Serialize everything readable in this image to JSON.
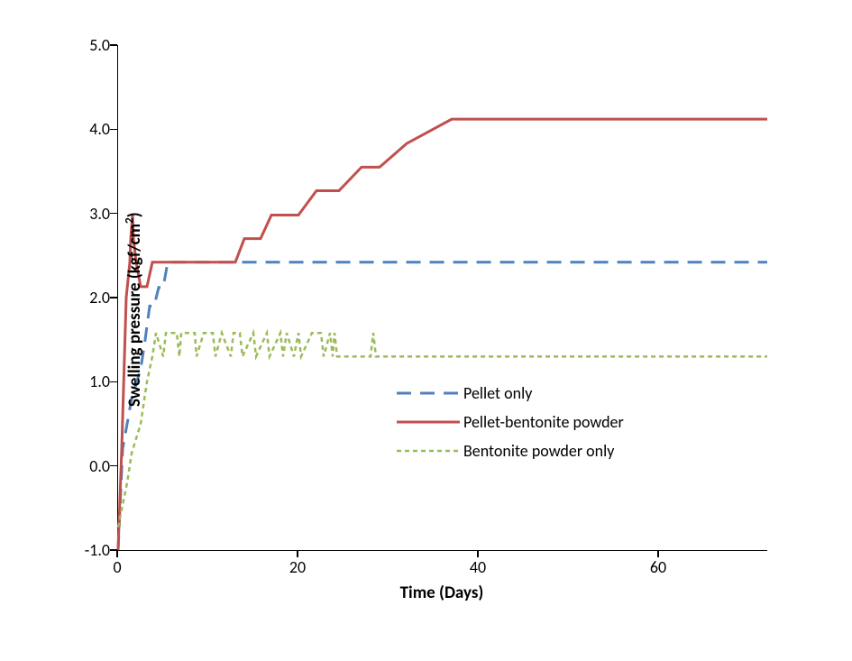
{
  "chart": {
    "type": "line",
    "title": "",
    "xlabel": "Time (Days)",
    "ylabel": "Swelling pressure  (kgf/cm²)",
    "ylabel_html": "Swelling pressure  (kgf/cm<sup>2</sup>)",
    "xlim": [
      0,
      72
    ],
    "ylim": [
      -1.0,
      5.0
    ],
    "xtick_positions": [
      0,
      20,
      40,
      60
    ],
    "xtick_labels": [
      "0",
      "20",
      "40",
      "60"
    ],
    "ytick_positions": [
      -1.0,
      0.0,
      1.0,
      2.0,
      3.0,
      4.0,
      5.0
    ],
    "ytick_labels": [
      "-1.0",
      "0.0",
      "1.0",
      "2.0",
      "3.0",
      "4.0",
      "5.0"
    ],
    "xlabel_fontsize": 19,
    "ylabel_fontsize": 19,
    "tick_fontsize": 18,
    "background_color": "#ffffff",
    "axis_color": "#000000",
    "legend": {
      "position": "center-right",
      "fontsize": 18,
      "items": [
        {
          "label": "Pellet only",
          "color": "#4f81bd",
          "dash": "long"
        },
        {
          "label": "Pellet-bentonite powder",
          "color": "#c0504d",
          "dash": "solid"
        },
        {
          "label": "Bentonite powder only",
          "color": "#9bbb59",
          "dash": "short"
        }
      ]
    },
    "series": [
      {
        "name": "Pellet only",
        "color": "#4f81bd",
        "line_width": 3,
        "dash": "16,10",
        "x": [
          0,
          0.5,
          1,
          1.5,
          2.5,
          3,
          3.5,
          4,
          4.5,
          5,
          5.5,
          6,
          72
        ],
        "y": [
          -1.0,
          0.2,
          0.5,
          0.8,
          1.15,
          1.5,
          1.9,
          1.9,
          2.12,
          2.12,
          2.42,
          2.42,
          2.42
        ]
      },
      {
        "name": "Pellet-bentonite powder",
        "color": "#c0504d",
        "line_width": 3,
        "dash": "none",
        "x": [
          0,
          0.4,
          0.9,
          1.3,
          1.4,
          1.6,
          1.7,
          2.0,
          2.5,
          3.2,
          3.8,
          4.8,
          6.0,
          13.0,
          14.0,
          15.8,
          17.0,
          20.0,
          22.0,
          24.5,
          27.0,
          29.0,
          32.0,
          37.0,
          72
        ],
        "y": [
          -1.0,
          0.2,
          2.0,
          2.42,
          2.7,
          2.98,
          2.7,
          2.42,
          2.13,
          2.13,
          2.42,
          2.42,
          2.42,
          2.42,
          2.7,
          2.7,
          2.98,
          2.98,
          3.27,
          3.27,
          3.55,
          3.55,
          3.83,
          4.12,
          4.12
        ]
      },
      {
        "name": "Bentonite powder only",
        "color": "#9bbb59",
        "line_width": 2.5,
        "dash": "5,4",
        "x": [
          0,
          1,
          1.5,
          2.5,
          3.2,
          3.8,
          4.2,
          5.0,
          5.3,
          6.5,
          6.8,
          7.0,
          8.5,
          8.7,
          9.5,
          10.5,
          10.8,
          11.5,
          12.5,
          12.8,
          13.5,
          13.8,
          15.0,
          15.3,
          16.5,
          16.8,
          18.0,
          18.3,
          18.7,
          19.5,
          20.0,
          20.3,
          21.5,
          22.5,
          22.8,
          23.5,
          23.8,
          24.0,
          24.3,
          28.0,
          28.3,
          28.6,
          72
        ],
        "y": [
          -0.73,
          -0.2,
          0.15,
          0.5,
          1.0,
          1.3,
          1.58,
          1.3,
          1.58,
          1.58,
          1.3,
          1.58,
          1.58,
          1.3,
          1.58,
          1.58,
          1.3,
          1.58,
          1.3,
          1.58,
          1.58,
          1.3,
          1.58,
          1.3,
          1.58,
          1.3,
          1.58,
          1.3,
          1.58,
          1.3,
          1.58,
          1.3,
          1.58,
          1.58,
          1.3,
          1.58,
          1.3,
          1.58,
          1.3,
          1.3,
          1.58,
          1.3,
          1.3
        ]
      }
    ]
  }
}
